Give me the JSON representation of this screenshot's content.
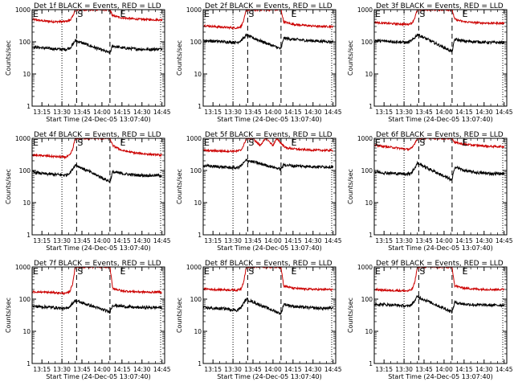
{
  "colors": {
    "events": "#000000",
    "lld": "#cc0000",
    "axis": "#000000",
    "background": "#ffffff"
  },
  "common": {
    "ylabel": "Counts/sec",
    "xlabel": "Start Time (24-Dec-05 13:07:40)",
    "x_tick_labels": [
      "13:15",
      "13:30",
      "13:45",
      "14:00",
      "14:15",
      "14:30",
      "14:45"
    ],
    "y_tick_labels": [
      "1",
      "10",
      "100",
      "1000"
    ],
    "marker_S": "S",
    "marker_E": "E"
  },
  "chart_data": [
    {
      "type": "line",
      "title": "Det 1f BLACK = Events, RED = LLD",
      "xlabel": "Start Time (24-Dec-05 13:07:40)",
      "ylabel": "Counts/sec",
      "yscale": "log",
      "ylim": [
        1,
        1000
      ],
      "xlim": [
        "13:07:40",
        "14:47:00"
      ],
      "markers": {
        "E_left": "13:07:40",
        "dotted_1": "13:30:00",
        "S": "13:41:00",
        "dashed_2": "14:06:00",
        "E_right": "14:16:00",
        "dotted_2": "14:44:00"
      },
      "series": [
        {
          "color": "#cc0000",
          "x": [
            "13:08",
            "13:15",
            "13:25",
            "13:33",
            "13:36",
            "13:38",
            "13:40",
            "14:06",
            "14:08",
            "14:15",
            "14:25",
            "14:35",
            "14:45"
          ],
          "values": [
            500,
            450,
            420,
            430,
            470,
            600,
            1000,
            1000,
            650,
            560,
            510,
            490,
            480
          ]
        },
        {
          "color": "#000000",
          "x": [
            "13:08",
            "13:15",
            "13:25",
            "13:33",
            "13:36",
            "13:38",
            "13:40",
            "14:06",
            "14:08",
            "14:15",
            "14:25",
            "14:35",
            "14:45"
          ],
          "values": [
            70,
            65,
            60,
            58,
            65,
            80,
            110,
            45,
            75,
            65,
            60,
            58,
            60
          ]
        }
      ]
    },
    {
      "type": "line",
      "title": "Det 2f BLACK = Events, RED = LLD",
      "xlabel": "Start Time (24-Dec-05 13:07:40)",
      "ylabel": "Counts/sec",
      "yscale": "log",
      "ylim": [
        1,
        1000
      ],
      "xlim": [
        "13:07:40",
        "14:47:00"
      ],
      "markers": {
        "E_left": "13:07:40",
        "dotted_1": "13:30:00",
        "S": "13:41:00",
        "dashed_2": "14:06:00",
        "E_right": "14:16:00",
        "dotted_2": "14:44:00"
      },
      "series": [
        {
          "color": "#cc0000",
          "x": [
            "13:08",
            "13:15",
            "13:25",
            "13:33",
            "13:36",
            "13:38",
            "13:40",
            "14:06",
            "14:08",
            "14:15",
            "14:25",
            "14:35",
            "14:45"
          ],
          "values": [
            320,
            300,
            280,
            270,
            300,
            450,
            1000,
            1000,
            420,
            350,
            320,
            300,
            300
          ]
        },
        {
          "color": "#000000",
          "x": [
            "13:08",
            "13:15",
            "13:25",
            "13:33",
            "13:36",
            "13:38",
            "13:40",
            "14:06",
            "14:08",
            "14:15",
            "14:25",
            "14:35",
            "14:45"
          ],
          "values": [
            110,
            105,
            100,
            95,
            110,
            130,
            160,
            60,
            130,
            120,
            110,
            105,
            100
          ]
        }
      ]
    },
    {
      "type": "line",
      "title": "Det 3f BLACK = Events, RED = LLD",
      "xlabel": "Start Time (24-Dec-05 13:07:40)",
      "ylabel": "Counts/sec",
      "yscale": "log",
      "ylim": [
        1,
        1000
      ],
      "xlim": [
        "13:07:40",
        "14:47:00"
      ],
      "markers": {
        "E_left": "13:07:40",
        "dotted_1": "13:30:00",
        "S": "13:41:00",
        "dashed_2": "14:06:00",
        "E_right": "14:16:00",
        "dotted_2": "14:44:00"
      },
      "series": [
        {
          "color": "#cc0000",
          "x": [
            "13:08",
            "13:15",
            "13:25",
            "13:33",
            "13:36",
            "13:38",
            "13:40",
            "14:06",
            "14:08",
            "14:15",
            "14:25",
            "14:35",
            "14:45"
          ],
          "values": [
            400,
            380,
            360,
            350,
            390,
            550,
            1000,
            1000,
            500,
            420,
            390,
            380,
            380
          ]
        },
        {
          "color": "#000000",
          "x": [
            "13:08",
            "13:15",
            "13:25",
            "13:33",
            "13:36",
            "13:38",
            "13:40",
            "14:06",
            "14:08",
            "14:15",
            "14:25",
            "14:35",
            "14:45"
          ],
          "values": [
            110,
            105,
            100,
            95,
            110,
            135,
            170,
            50,
            120,
            105,
            100,
            95,
            95
          ]
        }
      ]
    },
    {
      "type": "line",
      "title": "Det 4f BLACK = Events, RED = LLD",
      "xlabel": "Start Time (24-Dec-05 13:07:40)",
      "ylabel": "Counts/sec",
      "yscale": "log",
      "ylim": [
        1,
        1000
      ],
      "xlim": [
        "13:07:40",
        "14:47:00"
      ],
      "markers": {
        "E_left": "13:07:40",
        "dotted_1": "13:30:00",
        "S": "13:41:00",
        "dashed_2": "14:06:00",
        "E_right": "14:16:00",
        "dotted_2": "14:44:00"
      },
      "series": [
        {
          "color": "#cc0000",
          "x": [
            "13:08",
            "13:15",
            "13:25",
            "13:33",
            "13:36",
            "13:38",
            "13:40",
            "14:06",
            "14:08",
            "14:15",
            "14:25",
            "14:35",
            "14:45"
          ],
          "values": [
            300,
            290,
            270,
            260,
            300,
            450,
            1000,
            1000,
            600,
            420,
            350,
            320,
            300
          ]
        },
        {
          "color": "#000000",
          "x": [
            "13:08",
            "13:15",
            "13:25",
            "13:33",
            "13:36",
            "13:38",
            "13:40",
            "14:06",
            "14:08",
            "14:15",
            "14:25",
            "14:35",
            "14:45"
          ],
          "values": [
            90,
            80,
            75,
            72,
            85,
            110,
            150,
            45,
            90,
            80,
            72,
            70,
            70
          ]
        }
      ]
    },
    {
      "type": "line",
      "title": "Det 5f BLACK = Events, RED = LLD",
      "xlabel": "Start Time (24-Dec-05 13:07:40)",
      "ylabel": "Counts/sec",
      "yscale": "log",
      "ylim": [
        1,
        1000
      ],
      "xlim": [
        "13:07:40",
        "14:47:00"
      ],
      "markers": {
        "E_left": "13:07:40",
        "dotted_1": "13:30:00",
        "S": "13:41:00",
        "dashed_2": "14:06:00",
        "E_right": "14:16:00",
        "dotted_2": "14:44:00"
      },
      "series": [
        {
          "color": "#cc0000",
          "x": [
            "13:08",
            "13:15",
            "13:25",
            "13:33",
            "13:36",
            "13:38",
            "13:40",
            "13:45",
            "13:50",
            "13:55",
            "13:57",
            "14:00",
            "14:03",
            "14:06",
            "14:10",
            "14:20",
            "14:30",
            "14:45"
          ],
          "values": [
            420,
            410,
            400,
            400,
            430,
            600,
            1000,
            1000,
            600,
            1000,
            800,
            600,
            1000,
            700,
            500,
            450,
            430,
            420
          ]
        },
        {
          "color": "#000000",
          "x": [
            "13:08",
            "13:15",
            "13:25",
            "13:33",
            "13:36",
            "13:38",
            "13:40",
            "14:06",
            "14:08",
            "14:15",
            "14:25",
            "14:35",
            "14:45"
          ],
          "values": [
            140,
            135,
            125,
            120,
            140,
            170,
            210,
            110,
            150,
            140,
            135,
            130,
            130
          ]
        }
      ]
    },
    {
      "type": "line",
      "title": "Det 6f BLACK = Events, RED = LLD",
      "xlabel": "Start Time (24-Dec-05 13:07:40)",
      "ylabel": "Counts/sec",
      "yscale": "log",
      "ylim": [
        1,
        1000
      ],
      "xlim": [
        "13:07:40",
        "14:47:00"
      ],
      "markers": {
        "E_left": "13:07:40",
        "dotted_1": "13:30:00",
        "S": "13:41:00",
        "dashed_2": "14:06:00",
        "E_right": "14:16:00",
        "dotted_2": "14:44:00"
      },
      "series": [
        {
          "color": "#cc0000",
          "x": [
            "13:08",
            "13:15",
            "13:25",
            "13:33",
            "13:36",
            "13:38",
            "13:40",
            "14:06",
            "14:08",
            "14:15",
            "14:25",
            "14:35",
            "14:45"
          ],
          "values": [
            600,
            560,
            500,
            450,
            500,
            700,
            1000,
            1000,
            750,
            650,
            600,
            560,
            550
          ]
        },
        {
          "color": "#000000",
          "x": [
            "13:08",
            "13:15",
            "13:25",
            "13:33",
            "13:36",
            "13:38",
            "13:40",
            "14:06",
            "14:08",
            "14:15",
            "14:25",
            "14:35",
            "14:45"
          ],
          "values": [
            90,
            85,
            80,
            78,
            90,
            120,
            170,
            50,
            130,
            100,
            85,
            80,
            80
          ]
        }
      ]
    },
    {
      "type": "line",
      "title": "Det 7f BLACK = Events, RED = LLD",
      "xlabel": "Start Time (24-Dec-05 13:07:40)",
      "ylabel": "Counts/sec",
      "yscale": "log",
      "ylim": [
        1,
        1000
      ],
      "xlim": [
        "13:07:40",
        "14:47:00"
      ],
      "markers": {
        "E_left": "13:07:40",
        "dotted_1": "13:30:00",
        "S": "13:41:00",
        "dashed_2": "14:06:00",
        "E_right": "14:16:00",
        "dotted_2": "14:44:00"
      },
      "series": [
        {
          "color": "#cc0000",
          "x": [
            "13:08",
            "13:15",
            "13:25",
            "13:33",
            "13:36",
            "13:38",
            "13:40",
            "14:06",
            "14:08",
            "14:15",
            "14:25",
            "14:35",
            "14:45"
          ],
          "values": [
            170,
            165,
            160,
            150,
            175,
            300,
            1000,
            1000,
            220,
            180,
            170,
            165,
            165
          ]
        },
        {
          "color": "#000000",
          "x": [
            "13:08",
            "13:15",
            "13:25",
            "13:33",
            "13:36",
            "13:38",
            "13:40",
            "14:06",
            "14:08",
            "14:15",
            "14:25",
            "14:35",
            "14:45"
          ],
          "values": [
            60,
            58,
            55,
            50,
            60,
            75,
            90,
            40,
            65,
            60,
            55,
            55,
            55
          ]
        }
      ]
    },
    {
      "type": "line",
      "title": "Det 8f BLACK = Events, RED = LLD",
      "xlabel": "Start Time (24-Dec-05 13:07:40)",
      "ylabel": "Counts/sec",
      "yscale": "log",
      "ylim": [
        1,
        1000
      ],
      "xlim": [
        "13:07:40",
        "14:47:00"
      ],
      "markers": {
        "E_left": "13:07:40",
        "dotted_1": "13:30:00",
        "S": "13:41:00",
        "dashed_2": "14:06:00",
        "E_right": "14:16:00",
        "dotted_2": "14:44:00"
      },
      "series": [
        {
          "color": "#cc0000",
          "x": [
            "13:08",
            "13:15",
            "13:25",
            "13:33",
            "13:36",
            "13:38",
            "13:40",
            "14:06",
            "14:08",
            "14:15",
            "14:25",
            "14:35",
            "14:45"
          ],
          "values": [
            210,
            200,
            195,
            190,
            210,
            350,
            1000,
            1000,
            260,
            220,
            205,
            200,
            200
          ]
        },
        {
          "color": "#000000",
          "x": [
            "13:08",
            "13:15",
            "13:25",
            "13:33",
            "13:36",
            "13:38",
            "13:40",
            "14:06",
            "14:08",
            "14:15",
            "14:25",
            "14:35",
            "14:45"
          ],
          "values": [
            55,
            52,
            50,
            45,
            55,
            75,
            100,
            35,
            70,
            60,
            55,
            52,
            52
          ]
        }
      ]
    },
    {
      "type": "line",
      "title": "Det 9f BLACK = Events, RED = LLD",
      "xlabel": "Start Time (24-Dec-05 13:07:40)",
      "ylabel": "Counts/sec",
      "yscale": "log",
      "ylim": [
        1,
        1000
      ],
      "xlim": [
        "13:07:40",
        "14:47:00"
      ],
      "markers": {
        "E_left": "13:07:40",
        "dotted_1": "13:30:00",
        "S": "13:41:00",
        "dashed_2": "14:06:00",
        "E_right": "14:16:00",
        "dotted_2": "14:44:00"
      },
      "series": [
        {
          "color": "#cc0000",
          "x": [
            "13:08",
            "13:15",
            "13:25",
            "13:33",
            "13:36",
            "13:38",
            "13:40",
            "14:06",
            "14:08",
            "14:15",
            "14:25",
            "14:35",
            "14:45"
          ],
          "values": [
            200,
            190,
            185,
            180,
            200,
            330,
            1000,
            1000,
            260,
            220,
            205,
            200,
            200
          ]
        },
        {
          "color": "#000000",
          "x": [
            "13:08",
            "13:15",
            "13:25",
            "13:33",
            "13:36",
            "13:38",
            "13:40",
            "14:06",
            "14:08",
            "14:15",
            "14:25",
            "14:35",
            "14:45"
          ],
          "values": [
            70,
            68,
            65,
            60,
            70,
            90,
            120,
            40,
            80,
            70,
            66,
            65,
            65
          ]
        }
      ]
    }
  ]
}
